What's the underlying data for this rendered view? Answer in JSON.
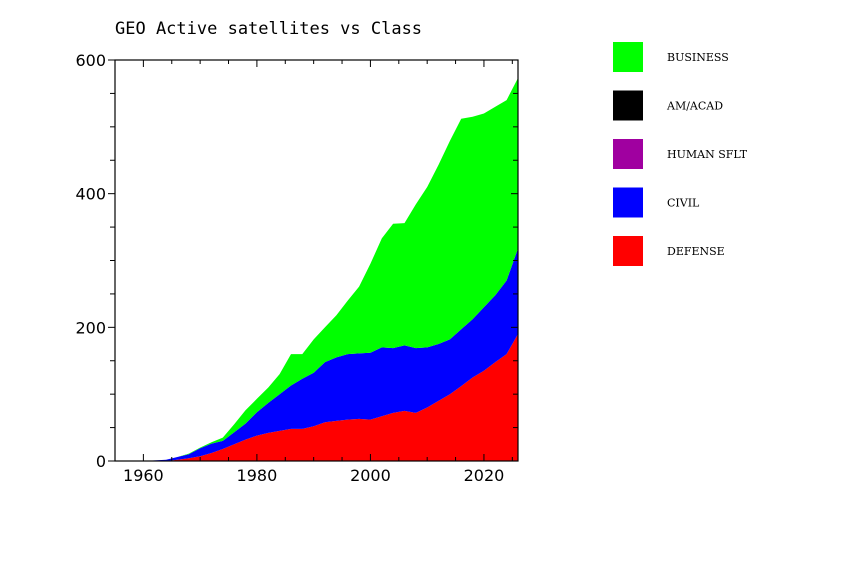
{
  "chart_data": {
    "type": "area",
    "stacked": true,
    "title": "GEO Active satellites vs Class",
    "xlabel": "",
    "ylabel": "",
    "xlim": [
      1955,
      2026
    ],
    "ylim": [
      0,
      600
    ],
    "x_ticks": [
      1960,
      1980,
      2000,
      2020
    ],
    "y_ticks": [
      0,
      200,
      400,
      600
    ],
    "x": [
      1955,
      1960,
      1964,
      1966,
      1968,
      1970,
      1972,
      1974,
      1976,
      1978,
      1980,
      1982,
      1984,
      1986,
      1988,
      1990,
      1992,
      1994,
      1996,
      1998,
      2000,
      2002,
      2004,
      2006,
      2008,
      2010,
      2012,
      2014,
      2016,
      2018,
      2020,
      2022,
      2024,
      2026
    ],
    "series": [
      {
        "name": "DEFENSE",
        "color": "#ff0000",
        "values": [
          0,
          0,
          0,
          2,
          4,
          7,
          12,
          18,
          25,
          32,
          38,
          42,
          45,
          48,
          48,
          52,
          58,
          60,
          62,
          63,
          62,
          67,
          72,
          75,
          72,
          80,
          90,
          100,
          112,
          125,
          135,
          148,
          160,
          190
        ]
      },
      {
        "name": "CIVIL",
        "color": "#0000ff",
        "values": [
          0,
          0,
          2,
          4,
          6,
          12,
          14,
          12,
          18,
          24,
          35,
          45,
          55,
          65,
          75,
          80,
          90,
          95,
          98,
          98,
          100,
          103,
          97,
          98,
          97,
          90,
          85,
          82,
          85,
          87,
          95,
          100,
          110,
          128
        ]
      },
      {
        "name": "HUMAN SFLT",
        "color": "#a000a0",
        "values": [
          0,
          0,
          0,
          0,
          0,
          0,
          0,
          0,
          0,
          0,
          0,
          0,
          0,
          0,
          0,
          0,
          0,
          0,
          0,
          0,
          0,
          0,
          0,
          0,
          0,
          0,
          0,
          0,
          0,
          0,
          0,
          0,
          0,
          0
        ]
      },
      {
        "name": "AM/ACAD",
        "color": "#000000",
        "values": [
          0,
          0,
          0,
          0,
          0,
          0,
          0,
          0,
          0,
          0,
          0,
          0,
          0,
          0,
          0,
          0,
          0,
          0,
          0,
          0,
          0,
          0,
          0,
          0,
          0,
          0,
          0,
          0,
          0,
          0,
          0,
          0,
          0,
          0
        ]
      },
      {
        "name": "BUSINESS",
        "color": "#00ff00",
        "values": [
          0,
          0,
          0,
          0,
          1,
          1,
          2,
          5,
          12,
          20,
          20,
          23,
          30,
          47,
          37,
          50,
          52,
          63,
          80,
          100,
          133,
          163,
          186,
          183,
          215,
          240,
          268,
          297,
          315,
          303,
          290,
          282,
          270,
          255
        ]
      }
    ],
    "legend": {
      "placement": "right",
      "order": [
        "BUSINESS",
        "AM/ACAD",
        "HUMAN SFLT",
        "CIVIL",
        "DEFENSE"
      ]
    }
  }
}
